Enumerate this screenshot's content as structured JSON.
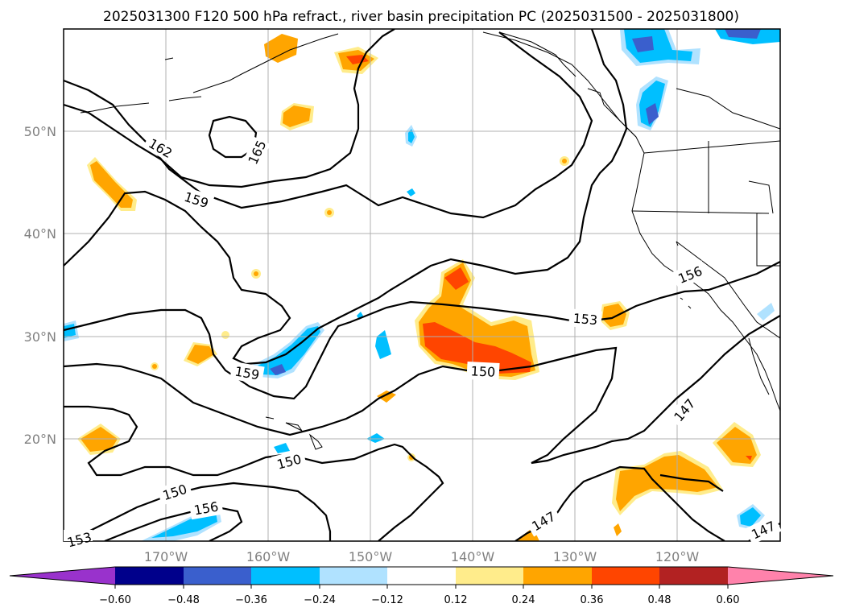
{
  "title": "2025031300 F120 500 hPa refract., river basin precipitation PC (2025031500 - 2025031800)",
  "lat_labels": [
    "50°N",
    "40°N",
    "30°N",
    "20°N"
  ],
  "lon_labels": [
    "170°W",
    "160°W",
    "150°W",
    "140°W",
    "130°W",
    "120°W"
  ],
  "contour_labels": [
    "162",
    "165",
    "159",
    "156",
    "153",
    "159",
    "150",
    "150",
    "150",
    "156",
    "153",
    "147",
    "147",
    "147"
  ],
  "colorbar": {
    "ticks": [
      "−0.60",
      "−0.48",
      "−0.36",
      "−0.24",
      "−0.12",
      "0.12",
      "0.24",
      "0.36",
      "0.48",
      "0.60"
    ],
    "colors": [
      "#9932cc",
      "#00008b",
      "#3a5fcd",
      "#00bfff",
      "#b0e2ff",
      "#ffffff",
      "#ffec8b",
      "#ffa500",
      "#ff4500",
      "#b22222",
      "#ff82ab"
    ]
  },
  "shade_colors": {
    "light_orange": "#ffec8b",
    "orange": "#ffa500",
    "red_orange": "#ff4500",
    "light_blue": "#b0e2ff",
    "sky_blue": "#00bfff",
    "blue": "#3a5fcd"
  }
}
